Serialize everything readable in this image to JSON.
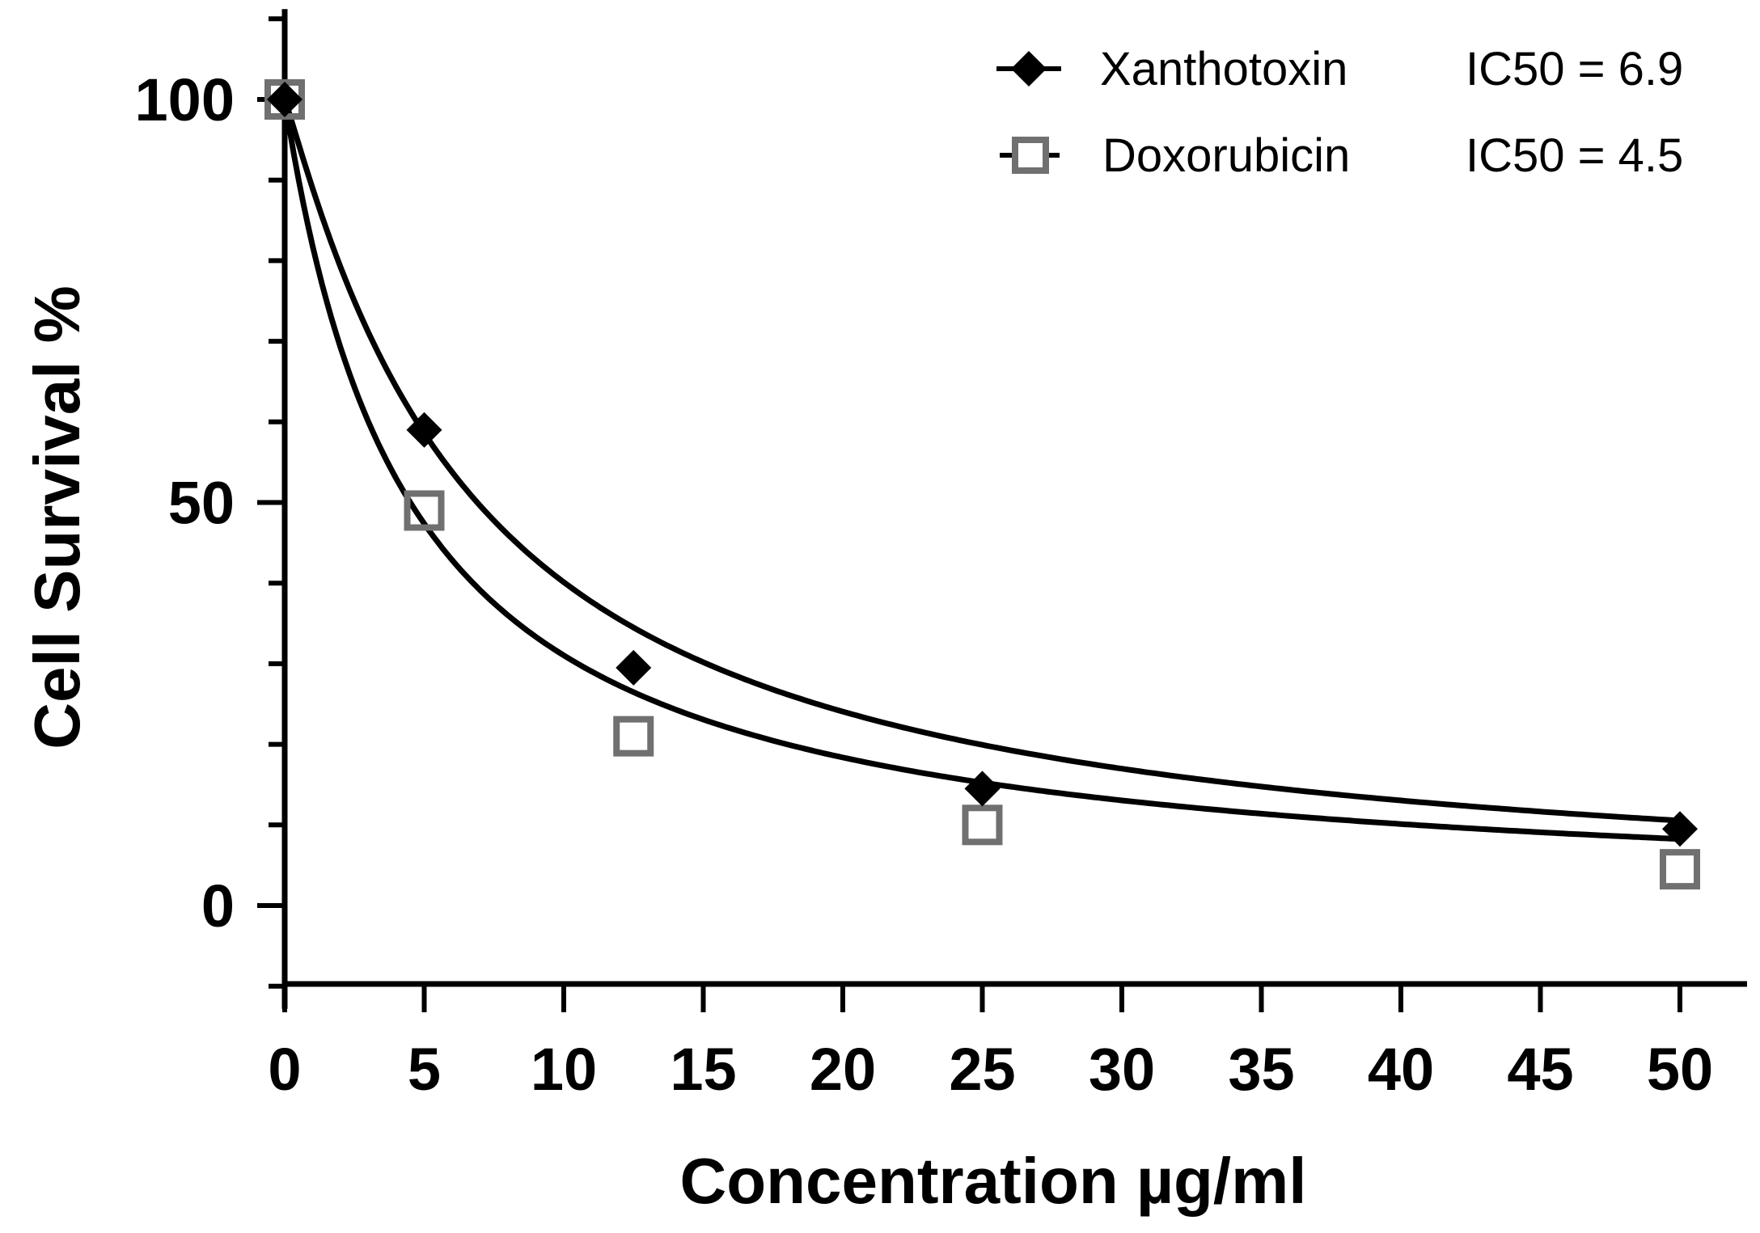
{
  "chart_data": {
    "type": "scatter",
    "title": "",
    "xlabel": "Concentration µg/ml",
    "ylabel": "Cell Survival %",
    "xlim": [
      0,
      52
    ],
    "ylim": [
      -10,
      110
    ],
    "x_ticks": [
      "0",
      "5",
      "10",
      "15",
      "20",
      "25",
      "30",
      "35",
      "40",
      "45",
      "50"
    ],
    "y_ticks": [
      "0",
      "50",
      "100"
    ],
    "grid": false,
    "legend_position": "top-right",
    "series": [
      {
        "name": "Xanthotoxin",
        "annotation": "IC50 = 6.9",
        "marker": "diamond",
        "color": "#000000",
        "ic50": 6.9,
        "x": [
          0,
          5,
          12.5,
          25,
          50
        ],
        "y": [
          100,
          59,
          29.5,
          14.5,
          9.5
        ]
      },
      {
        "name": "Doxorubicin",
        "annotation": "IC50 = 4.5",
        "marker": "open-square",
        "color": "#707070",
        "ic50": 4.5,
        "x": [
          0,
          5,
          12.5,
          25,
          50
        ],
        "y": [
          100,
          49,
          21,
          10,
          4.5
        ]
      }
    ]
  }
}
